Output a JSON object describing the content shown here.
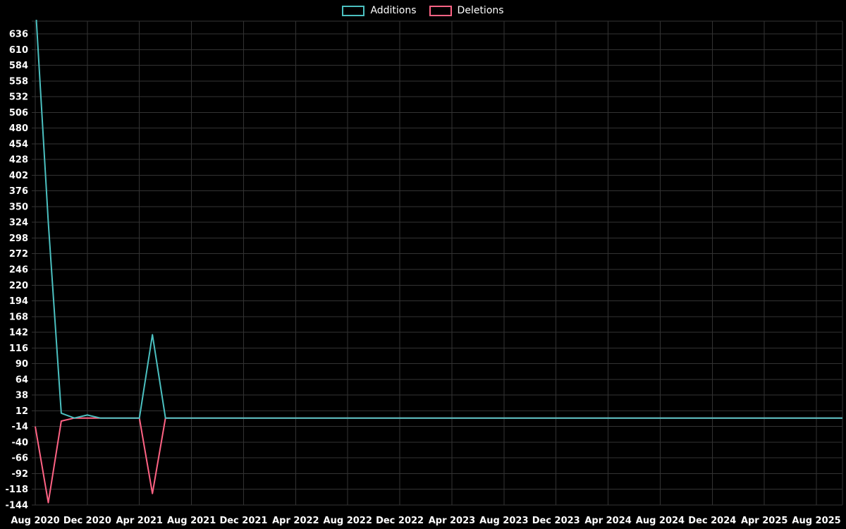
{
  "page": {
    "background": "#000000"
  },
  "chart_data": {
    "type": "line",
    "title": "",
    "xlabel": "",
    "ylabel": "",
    "legend_position": "top",
    "grid": true,
    "grid_color": "#333333",
    "axis_text_color": "#ffffff",
    "background": "#000000",
    "ylim": [
      -144,
      657
    ],
    "x_tick_every": 4,
    "y_ticks": [
      -144,
      -118,
      -92,
      -66,
      -40,
      -14,
      12,
      38,
      64,
      90,
      116,
      142,
      168,
      194,
      220,
      246,
      272,
      298,
      324,
      350,
      376,
      402,
      428,
      454,
      480,
      506,
      532,
      558,
      584,
      610,
      636
    ],
    "x": [
      "Aug 2020",
      "Sep 2020",
      "Oct 2020",
      "Nov 2020",
      "Dec 2020",
      "Jan 2021",
      "Feb 2021",
      "Mar 2021",
      "Apr 2021",
      "May 2021",
      "Jun 2021",
      "Jul 2021",
      "Aug 2021",
      "Sep 2021",
      "Oct 2021",
      "Nov 2021",
      "Dec 2021",
      "Jan 2022",
      "Feb 2022",
      "Mar 2022",
      "Apr 2022",
      "May 2022",
      "Jun 2022",
      "Jul 2022",
      "Aug 2022",
      "Sep 2022",
      "Oct 2022",
      "Nov 2022",
      "Dec 2022",
      "Jan 2023",
      "Feb 2023",
      "Mar 2023",
      "Apr 2023",
      "May 2023",
      "Jun 2023",
      "Jul 2023",
      "Aug 2023",
      "Sep 2023",
      "Oct 2023",
      "Nov 2023",
      "Dec 2023",
      "Jan 2024",
      "Feb 2024",
      "Mar 2024",
      "Apr 2024",
      "May 2024",
      "Jun 2024",
      "Jul 2024",
      "Aug 2024",
      "Sep 2024",
      "Oct 2024",
      "Nov 2024",
      "Dec 2024",
      "Jan 2025",
      "Feb 2025",
      "Mar 2025",
      "Apr 2025",
      "May 2025",
      "Jun 2025",
      "Jul 2025",
      "Aug 2025",
      "Sep 2025",
      "Oct 2025"
    ],
    "series": [
      {
        "name": "Additions",
        "color": "#4bc0c0",
        "values": [
          690,
          324,
          8,
          0,
          5,
          0,
          0,
          0,
          0,
          138,
          0,
          0,
          0,
          0,
          0,
          0,
          0,
          0,
          0,
          0,
          0,
          0,
          0,
          0,
          0,
          0,
          0,
          0,
          0,
          0,
          0,
          0,
          0,
          0,
          0,
          0,
          0,
          0,
          0,
          0,
          0,
          0,
          0,
          0,
          0,
          0,
          0,
          0,
          0,
          0,
          0,
          0,
          0,
          0,
          0,
          0,
          0,
          0,
          0,
          0,
          0,
          0,
          0
        ]
      },
      {
        "name": "Deletions",
        "color": "#ff6384",
        "values": [
          -14,
          -140,
          -5,
          0,
          0,
          0,
          0,
          0,
          0,
          -125,
          0,
          0,
          0,
          0,
          0,
          0,
          0,
          0,
          0,
          0,
          0,
          0,
          0,
          0,
          0,
          0,
          0,
          0,
          0,
          0,
          0,
          0,
          0,
          0,
          0,
          0,
          0,
          0,
          0,
          0,
          0,
          0,
          0,
          0,
          0,
          0,
          0,
          0,
          0,
          0,
          0,
          0,
          0,
          0,
          0,
          0,
          0,
          0,
          0,
          0,
          0,
          0,
          0
        ]
      }
    ]
  }
}
